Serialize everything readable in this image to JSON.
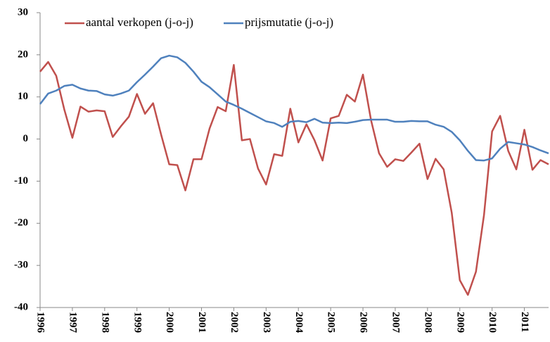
{
  "chart_data": {
    "type": "line",
    "categories": [
      "1996",
      null,
      null,
      null,
      "1997",
      null,
      null,
      null,
      "1998",
      null,
      null,
      null,
      "1999",
      null,
      null,
      null,
      "2000",
      null,
      null,
      null,
      "2001",
      null,
      null,
      null,
      "2002",
      null,
      null,
      null,
      "2003",
      null,
      null,
      null,
      "2004",
      null,
      null,
      null,
      "2005",
      null,
      null,
      null,
      "2006",
      null,
      null,
      null,
      "2007",
      null,
      null,
      null,
      "2008",
      null,
      null,
      null,
      "2009",
      null,
      null,
      null,
      "2010",
      null,
      null,
      null,
      "2011",
      null,
      null,
      null
    ],
    "series": [
      {
        "name": "aantal verkopen (j-o-j)",
        "color": "#c0504d",
        "values": [
          16,
          18.3,
          15,
          7,
          0.3,
          7.7,
          6.5,
          6.8,
          6.6,
          0.5,
          3,
          5.3,
          10.7,
          6,
          8.5,
          1,
          -6,
          -6.2,
          -12.2,
          -4.8,
          -4.8,
          2.5,
          7.6,
          6.6,
          17.6,
          -0.3,
          0,
          -7,
          -10.8,
          -3.6,
          -4,
          7.2,
          -0.8,
          3.5,
          -0.3,
          -5.1,
          4.9,
          5.5,
          10.5,
          8.9,
          15.3,
          4.5,
          -3.4,
          -6.6,
          -4.8,
          -5.2,
          -3.2,
          -1.1,
          -9.5,
          -4.7,
          -7.2,
          -17.5,
          -33.5,
          -37,
          -31.5,
          -18,
          1.8,
          5.5,
          -2.8,
          -7.2,
          2.2,
          -7.3,
          -5,
          -6
        ]
      },
      {
        "name": "prijsmutatie (j-o-j)",
        "color": "#4f81bd",
        "values": [
          8.3,
          10.8,
          11.5,
          12.6,
          12.9,
          12,
          11.5,
          11.4,
          10.6,
          10.3,
          10.8,
          11.5,
          13.5,
          15.3,
          17.2,
          19.2,
          19.8,
          19.4,
          18.1,
          16,
          13.6,
          12.3,
          10.6,
          8.9,
          8.1,
          7.2,
          6.2,
          5.2,
          4.2,
          3.8,
          2.9,
          4.1,
          4.3,
          4,
          4.8,
          3.9,
          3.8,
          3.9,
          3.8,
          4.1,
          4.5,
          4.6,
          4.6,
          4.6,
          4.1,
          4.1,
          4.3,
          4.2,
          4.2,
          3.4,
          2.9,
          1.7,
          -0.3,
          -2.8,
          -5,
          -5.1,
          -4.6,
          -2.3,
          -0.7,
          -1,
          -1.3,
          -1.9,
          -2.7,
          -3.4
        ]
      }
    ],
    "ylim": [
      -40,
      30
    ],
    "yticks": [
      -40,
      -30,
      -20,
      -10,
      0,
      10,
      20,
      30
    ],
    "grid": false,
    "legend": "top"
  }
}
